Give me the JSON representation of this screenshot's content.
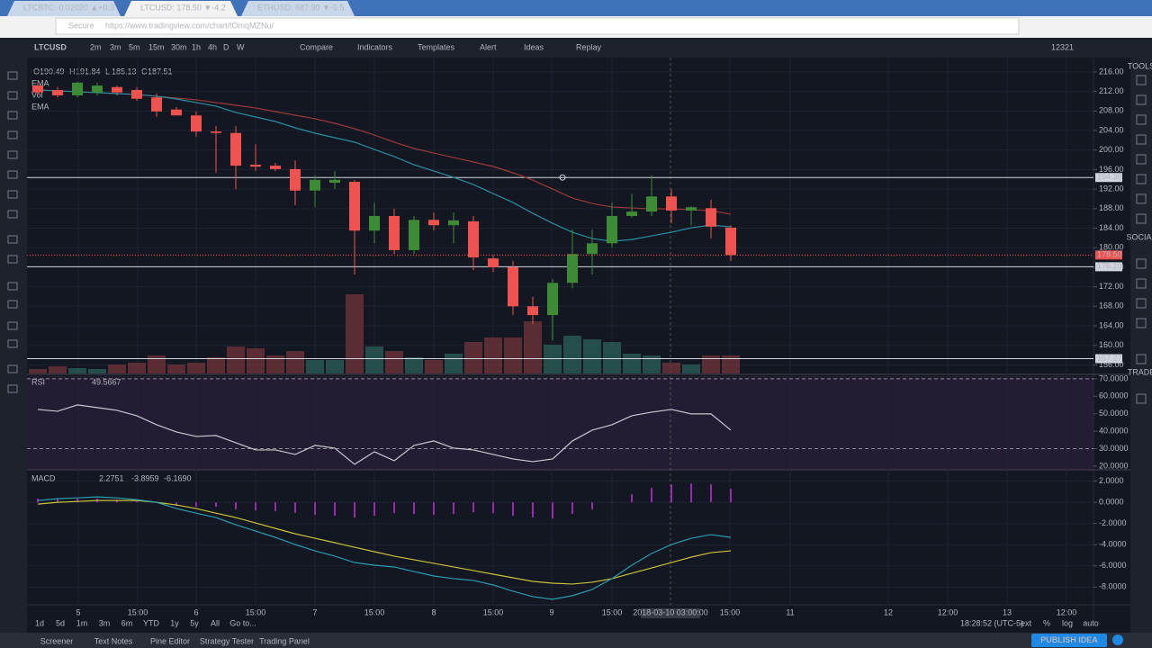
{
  "browser": {
    "tabs": [
      "LTCBTC: 0.02020 ▲+0.3",
      "LTCUSD: 178.50 ▼-4.2",
      "ETHUSD: 687.90 ▼-5.5"
    ],
    "secure": "Secure",
    "url": "https://www.tradingview.com/chart/tOmqMZNu/"
  },
  "toolbar": {
    "symbol": "LTCUSD",
    "intervals": [
      "2m",
      "3m",
      "5m",
      "15m",
      "30m",
      "1h",
      "4h",
      "D",
      "W"
    ],
    "buttons": [
      "Compare",
      "Indicators",
      "Templates",
      "Alert",
      "Ideas",
      "Replay"
    ],
    "counter": "12321"
  },
  "legend": {
    "ohlc": [
      [
        "O",
        "190.49"
      ],
      [
        "H",
        "191.84"
      ],
      [
        "L",
        "185.13"
      ],
      [
        "C",
        "187.51"
      ]
    ],
    "indicators": [
      "EMA",
      "Vol",
      "EMA"
    ]
  },
  "price_pane": {
    "ylim": [
      154.6,
      218.2
    ],
    "yticks": [
      {
        "value": 216,
        "label": "216.00"
      },
      {
        "value": 212,
        "label": "212.00"
      },
      {
        "value": 208,
        "label": "208.00"
      },
      {
        "value": 204,
        "label": "204.00"
      },
      {
        "value": 200,
        "label": "200.00"
      },
      {
        "value": 196,
        "label": "196.00"
      },
      {
        "value": 192,
        "label": "192.00"
      },
      {
        "value": 188,
        "label": "188.00"
      },
      {
        "value": 184,
        "label": "184.00"
      },
      {
        "value": 180,
        "label": "180.00"
      },
      {
        "value": 176,
        "label": "176.00"
      },
      {
        "value": 172,
        "label": "172.00"
      },
      {
        "value": 168,
        "label": "168.00"
      },
      {
        "value": 164,
        "label": "164.00"
      },
      {
        "value": 160,
        "label": "160.00"
      },
      {
        "value": 156,
        "label": "156.00"
      }
    ],
    "candles": [
      [
        213.2,
        213.8,
        211.2,
        211.8
      ],
      [
        212.3,
        212.9,
        210.8,
        211.2
      ],
      [
        211.2,
        214.0,
        210.8,
        213.8
      ],
      [
        211.8,
        213.8,
        211.2,
        213.2
      ],
      [
        212.9,
        213.2,
        211.2,
        211.8
      ],
      [
        212.3,
        212.9,
        210.1,
        210.5
      ],
      [
        210.8,
        211.6,
        206.8,
        207.9
      ],
      [
        208.3,
        208.8,
        207.1,
        207.1
      ],
      [
        207.1,
        207.9,
        202.7,
        203.8
      ],
      [
        203.8,
        204.9,
        195.3,
        203.5
      ],
      [
        203.5,
        204.9,
        192.0,
        196.8
      ],
      [
        197.0,
        201.2,
        195.7,
        196.6
      ],
      [
        196.8,
        197.4,
        195.7,
        196.1
      ],
      [
        196.1,
        197.9,
        188.7,
        191.7
      ],
      [
        191.7,
        194.8,
        188.3,
        193.9
      ],
      [
        193.3,
        195.7,
        192.0,
        193.9
      ],
      [
        193.5,
        193.9,
        174.5,
        183.5
      ],
      [
        183.5,
        189.3,
        180.9,
        186.5
      ],
      [
        186.5,
        188.0,
        178.7,
        179.5
      ],
      [
        179.5,
        186.5,
        178.7,
        185.7
      ],
      [
        185.7,
        187.2,
        183.5,
        184.6
      ],
      [
        184.6,
        187.2,
        180.9,
        185.6
      ],
      [
        185.4,
        186.5,
        175.4,
        178.0
      ],
      [
        177.8,
        178.5,
        175.0,
        176.0
      ],
      [
        176.0,
        177.3,
        166.2,
        168.0
      ],
      [
        168.0,
        169.9,
        164.3,
        166.2
      ],
      [
        166.2,
        173.6,
        161.0,
        172.8
      ],
      [
        172.8,
        183.7,
        171.7,
        178.7
      ],
      [
        178.7,
        183.7,
        174.5,
        180.9
      ],
      [
        180.9,
        189.3,
        180.0,
        186.5
      ],
      [
        186.5,
        191.0,
        186.1,
        187.4
      ],
      [
        187.4,
        194.8,
        186.5,
        190.5
      ],
      [
        190.5,
        192.0,
        185.0,
        187.6
      ],
      [
        187.6,
        188.5,
        184.6,
        188.3
      ],
      [
        188.1,
        189.8,
        181.9,
        184.3
      ],
      [
        184.1,
        184.6,
        177.3,
        178.5
      ]
    ],
    "volume": [
      5,
      8,
      6,
      5,
      10,
      12,
      20,
      10,
      12,
      18,
      30,
      28,
      20,
      25,
      15,
      15,
      88,
      30,
      25,
      18,
      15,
      22,
      35,
      40,
      40,
      58,
      32,
      42,
      38,
      35,
      22,
      20,
      12,
      10,
      20,
      20
    ],
    "ema_fast": [
      212.31,
      212.13,
      211.94,
      211.76,
      211.57,
      211.39,
      211.02,
      210.46,
      209.73,
      208.99,
      207.7,
      206.77,
      205.85,
      204.56,
      203.45,
      202.53,
      201.61,
      200.13,
      198.66,
      197.0,
      195.7,
      194.41,
      192.94,
      191.09,
      189.25,
      187.03,
      185.0,
      183.16,
      181.87,
      181.31,
      181.68,
      182.42,
      183.16,
      184.08,
      184.63,
      184.27
    ],
    "ema_slow": [
      212.31,
      212.13,
      211.94,
      211.76,
      211.57,
      211.39,
      211.02,
      210.65,
      210.28,
      209.73,
      209.17,
      208.62,
      207.88,
      207.14,
      206.41,
      205.48,
      204.38,
      203.08,
      201.61,
      200.32,
      199.39,
      198.47,
      197.55,
      196.63,
      195.34,
      193.86,
      192.01,
      190.17,
      189.06,
      188.32,
      188.14,
      187.96,
      187.96,
      187.77,
      187.59,
      186.85
    ],
    "hlines": [
      {
        "value": 194.38,
        "label": "194.38"
      },
      {
        "value": 176.1,
        "label": "176.10"
      },
      {
        "value": 157.27,
        "label": "157.27"
      }
    ],
    "last_price": {
      "value": 178.5,
      "label": "178.50"
    }
  },
  "rsi": {
    "label": "RSI",
    "readout": "49.5667",
    "ylim": [
      17.9,
      71.5
    ],
    "yticks": [
      {
        "value": 70,
        "label": "70.0000"
      },
      {
        "value": 60,
        "label": "60.0000"
      },
      {
        "value": 50,
        "label": "50.0000"
      },
      {
        "value": 40,
        "label": "40.0000"
      },
      {
        "value": 30,
        "label": "30.0000"
      },
      {
        "value": 20,
        "label": "20.0000"
      }
    ],
    "bands": [
      70,
      30
    ],
    "values": [
      52.47,
      51.44,
      55.05,
      53.51,
      51.96,
      48.87,
      43.71,
      39.59,
      37.01,
      37.53,
      33.4,
      29.28,
      29.28,
      26.7,
      31.86,
      30.31,
      21.03,
      28.25,
      23.09,
      31.86,
      34.43,
      30.31,
      29.28,
      26.7,
      24.12,
      22.58,
      24.12,
      34.43,
      40.62,
      43.71,
      48.87,
      50.93,
      52.47,
      49.9,
      49.9,
      40.62
    ]
  },
  "macd": {
    "label": "MACD",
    "readouts": [
      "2.2751",
      "-3.8959",
      "-6.1690"
    ],
    "ylim": [
      -9.5,
      2.9
    ],
    "yticks": [
      {
        "value": 2,
        "label": "2.0000"
      },
      {
        "value": 0,
        "label": "0.0000"
      },
      {
        "value": -2,
        "label": "-2.0000"
      },
      {
        "value": -4,
        "label": "-4.0000"
      },
      {
        "value": -6,
        "label": "-6.0000"
      },
      {
        "value": -8,
        "label": "-8.0000"
      }
    ],
    "hist": [
      0.34,
      0.34,
      0.34,
      0.34,
      0.25,
      0.08,
      0,
      -0.34,
      -0.43,
      -0.42,
      -0.68,
      -0.76,
      -0.85,
      -1.01,
      -1.19,
      -1.27,
      -1.44,
      -1.27,
      -1.02,
      -1.11,
      -1.19,
      -1.1,
      -0.93,
      -1.02,
      -1.27,
      -1.44,
      -1.52,
      -1.1,
      -0.68,
      0,
      0.76,
      1.36,
      1.7,
      1.78,
      1.7,
      1.27
    ],
    "macd": [
      0.17,
      0.34,
      0.42,
      0.51,
      0.42,
      0.25,
      0,
      -0.59,
      -1.02,
      -1.44,
      -2.12,
      -2.71,
      -3.31,
      -3.98,
      -4.58,
      -5.08,
      -5.68,
      -5.93,
      -6.1,
      -6.53,
      -6.95,
      -7.2,
      -7.37,
      -7.8,
      -8.39,
      -8.9,
      -9.15,
      -8.81,
      -8.22,
      -7.2,
      -5.93,
      -4.83,
      -3.98,
      -3.39,
      -3.05,
      -3.31
    ],
    "signal": [
      -0.17,
      0,
      0.08,
      0.17,
      0.17,
      0.17,
      0,
      -0.25,
      -0.59,
      -1.02,
      -1.44,
      -1.95,
      -2.46,
      -2.97,
      -3.39,
      -3.81,
      -4.24,
      -4.66,
      -5.08,
      -5.42,
      -5.76,
      -6.1,
      -6.44,
      -6.78,
      -7.12,
      -7.46,
      -7.63,
      -7.71,
      -7.54,
      -7.2,
      -6.69,
      -6.19,
      -5.68,
      -5.17,
      -4.75,
      -4.58
    ]
  },
  "time_axis": {
    "labels": [
      "5",
      "15:00",
      "6",
      "15:00",
      "7",
      "15:00",
      "8",
      "15:00",
      "9",
      "15:00",
      "15:00",
      "11",
      "12",
      "12:00",
      "13",
      "12:00"
    ],
    "crosshair": "2018-03-10 03:00:00"
  },
  "bottom_bar": {
    "ranges": [
      "1d",
      "5d",
      "1m",
      "3m",
      "6m",
      "YTD",
      "1y",
      "5y",
      "All",
      "Go to..."
    ],
    "clock": "18:28:52 (UTC-5)",
    "options": [
      "ext",
      "%",
      "log",
      "auto"
    ]
  },
  "footer": {
    "tabs": [
      "Screener",
      "Text Notes",
      "Pine Editor",
      "Strategy Tester",
      "Trading Panel"
    ],
    "publish": "PUBLISH IDEA"
  },
  "sidebar": [
    "TOOLS",
    "SOCIAL",
    "TRADE"
  ]
}
